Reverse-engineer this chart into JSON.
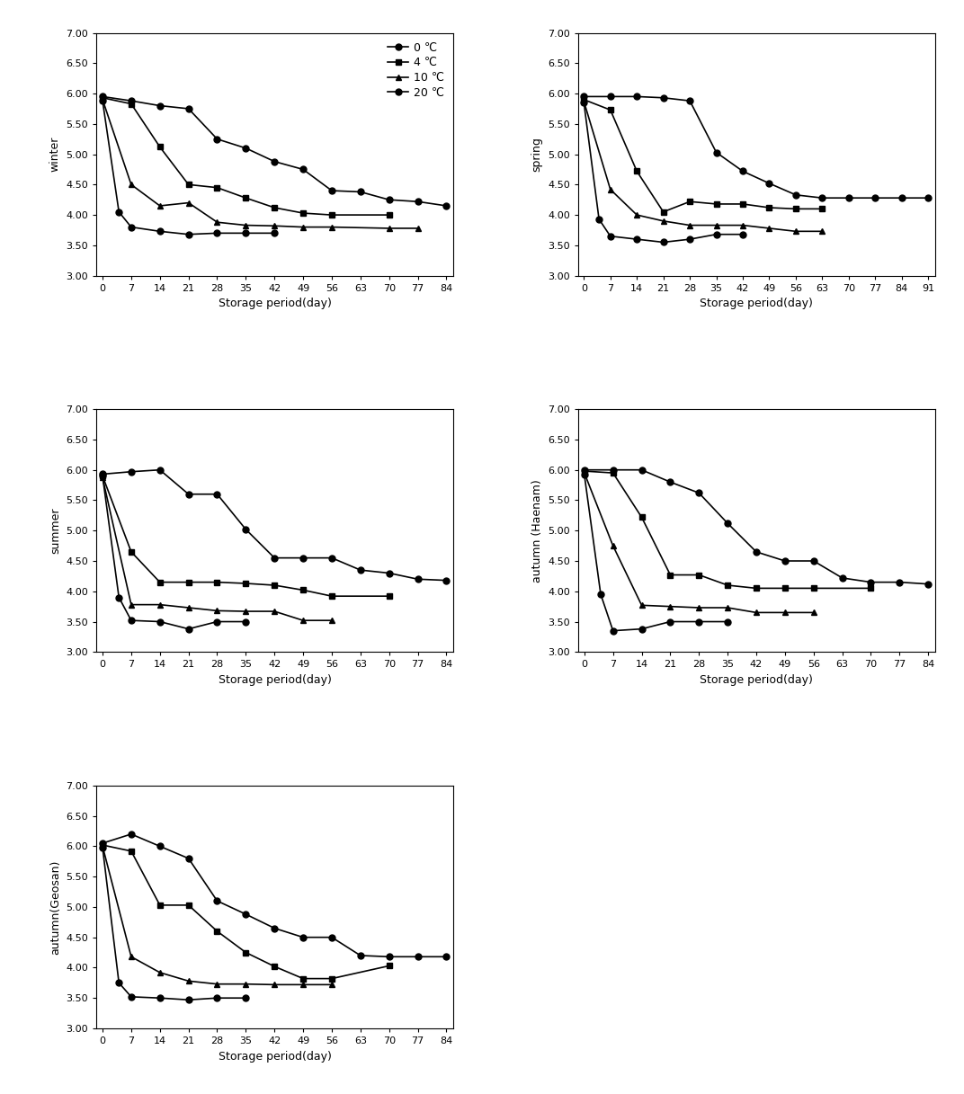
{
  "panels": [
    {
      "label": "winter",
      "x_ticks": [
        0,
        7,
        14,
        21,
        28,
        35,
        42,
        49,
        56,
        63,
        70,
        77,
        84
      ],
      "x_max": 84,
      "series": [
        {
          "temp": "0 ℃",
          "marker": "o",
          "x": [
            0,
            7,
            14,
            21,
            28,
            35,
            42,
            49,
            56,
            63,
            70,
            77,
            84
          ],
          "y": [
            5.95,
            5.88,
            5.8,
            5.75,
            5.25,
            5.1,
            4.88,
            4.75,
            4.4,
            4.38,
            4.25,
            4.22,
            4.15
          ]
        },
        {
          "temp": "4 ℃",
          "marker": "s",
          "x": [
            0,
            7,
            14,
            21,
            28,
            35,
            42,
            49,
            56,
            70
          ],
          "y": [
            5.93,
            5.83,
            5.12,
            4.5,
            4.45,
            4.28,
            4.12,
            4.03,
            4.0,
            4.0
          ]
        },
        {
          "temp": "10 ℃",
          "marker": "^",
          "x": [
            0,
            7,
            14,
            21,
            28,
            35,
            42,
            49,
            56,
            70,
            77
          ],
          "y": [
            5.9,
            4.5,
            4.15,
            4.2,
            3.88,
            3.83,
            3.82,
            3.8,
            3.8,
            3.78,
            3.78
          ]
        },
        {
          "temp": "20 ℃",
          "marker": "o",
          "x": [
            0,
            4,
            7,
            14,
            21,
            28,
            35,
            42
          ],
          "y": [
            5.88,
            4.05,
            3.8,
            3.73,
            3.68,
            3.7,
            3.7,
            3.7
          ]
        }
      ],
      "show_legend": true
    },
    {
      "label": "spring",
      "x_ticks": [
        0,
        7,
        14,
        21,
        28,
        35,
        42,
        49,
        56,
        63,
        70,
        77,
        84,
        91
      ],
      "x_max": 91,
      "series": [
        {
          "temp": "0 ℃",
          "marker": "o",
          "x": [
            0,
            7,
            14,
            21,
            28,
            35,
            42,
            49,
            56,
            63,
            70,
            77,
            84,
            91
          ],
          "y": [
            5.95,
            5.95,
            5.95,
            5.93,
            5.88,
            5.03,
            4.72,
            4.52,
            4.33,
            4.28,
            4.28,
            4.28,
            4.28,
            4.28
          ]
        },
        {
          "temp": "4 ℃",
          "marker": "s",
          "x": [
            0,
            7,
            14,
            21,
            28,
            35,
            42,
            49,
            56,
            63
          ],
          "y": [
            5.9,
            5.73,
            4.72,
            4.05,
            4.22,
            4.18,
            4.18,
            4.12,
            4.1,
            4.1
          ]
        },
        {
          "temp": "10 ℃",
          "marker": "^",
          "x": [
            0,
            7,
            14,
            21,
            28,
            35,
            42,
            49,
            56,
            63
          ],
          "y": [
            5.87,
            4.42,
            4.0,
            3.9,
            3.83,
            3.83,
            3.83,
            3.78,
            3.73,
            3.73
          ]
        },
        {
          "temp": "20 ℃",
          "marker": "o",
          "x": [
            0,
            4,
            7,
            14,
            21,
            28,
            35,
            42
          ],
          "y": [
            5.85,
            3.93,
            3.65,
            3.6,
            3.55,
            3.6,
            3.68,
            3.68
          ]
        }
      ],
      "show_legend": false
    },
    {
      "label": "summer",
      "x_ticks": [
        0,
        7,
        14,
        21,
        28,
        35,
        42,
        49,
        56,
        63,
        70,
        77,
        84
      ],
      "x_max": 84,
      "series": [
        {
          "temp": "0 ℃",
          "marker": "o",
          "x": [
            0,
            7,
            14,
            21,
            28,
            35,
            42,
            49,
            56,
            63,
            70,
            77,
            84
          ],
          "y": [
            5.93,
            5.97,
            6.0,
            5.6,
            5.6,
            5.02,
            4.55,
            4.55,
            4.55,
            4.35,
            4.3,
            4.2,
            4.18
          ]
        },
        {
          "temp": "4 ℃",
          "marker": "s",
          "x": [
            0,
            7,
            14,
            21,
            28,
            35,
            42,
            49,
            56,
            70
          ],
          "y": [
            5.9,
            4.65,
            4.15,
            4.15,
            4.15,
            4.13,
            4.1,
            4.02,
            3.92,
            3.92
          ]
        },
        {
          "temp": "10 ℃",
          "marker": "^",
          "x": [
            0,
            7,
            14,
            21,
            28,
            35,
            42,
            49,
            56
          ],
          "y": [
            5.87,
            3.78,
            3.78,
            3.73,
            3.68,
            3.67,
            3.67,
            3.52,
            3.52
          ]
        },
        {
          "temp": "20 ℃",
          "marker": "o",
          "x": [
            0,
            4,
            7,
            14,
            21,
            28,
            35
          ],
          "y": [
            5.9,
            3.9,
            3.52,
            3.5,
            3.38,
            3.5,
            3.5
          ]
        }
      ],
      "show_legend": false
    },
    {
      "label": "autumn (Haenam)",
      "x_ticks": [
        0,
        7,
        14,
        21,
        28,
        35,
        42,
        49,
        56,
        63,
        70,
        77,
        84
      ],
      "x_max": 84,
      "series": [
        {
          "temp": "0 ℃",
          "marker": "o",
          "x": [
            0,
            7,
            14,
            21,
            28,
            35,
            42,
            49,
            56,
            63,
            70,
            77,
            84
          ],
          "y": [
            6.0,
            6.0,
            6.0,
            5.8,
            5.62,
            5.12,
            4.65,
            4.5,
            4.5,
            4.22,
            4.15,
            4.15,
            4.12
          ]
        },
        {
          "temp": "4 ℃",
          "marker": "s",
          "x": [
            0,
            7,
            14,
            21,
            28,
            35,
            42,
            49,
            56,
            70
          ],
          "y": [
            5.98,
            5.95,
            5.22,
            4.27,
            4.27,
            4.1,
            4.05,
            4.05,
            4.05,
            4.05
          ]
        },
        {
          "temp": "10 ℃",
          "marker": "^",
          "x": [
            0,
            7,
            14,
            21,
            28,
            35,
            42,
            49,
            56
          ],
          "y": [
            5.95,
            4.75,
            3.77,
            3.75,
            3.73,
            3.73,
            3.65,
            3.65,
            3.65
          ]
        },
        {
          "temp": "20 ℃",
          "marker": "o",
          "x": [
            0,
            4,
            7,
            14,
            21,
            28,
            35
          ],
          "y": [
            5.92,
            3.95,
            3.35,
            3.38,
            3.5,
            3.5,
            3.5
          ]
        }
      ],
      "show_legend": false
    },
    {
      "label": "autumn(Geosan)",
      "x_ticks": [
        0,
        7,
        14,
        21,
        28,
        35,
        42,
        49,
        56,
        63,
        70,
        77,
        84
      ],
      "x_max": 84,
      "series": [
        {
          "temp": "0 ℃",
          "marker": "o",
          "x": [
            0,
            7,
            14,
            21,
            28,
            35,
            42,
            49,
            56,
            63,
            70,
            77,
            84
          ],
          "y": [
            6.05,
            6.2,
            6.0,
            5.8,
            5.1,
            4.88,
            4.65,
            4.5,
            4.5,
            4.2,
            4.18,
            4.18,
            4.18
          ]
        },
        {
          "temp": "4 ℃",
          "marker": "s",
          "x": [
            0,
            7,
            14,
            21,
            28,
            35,
            42,
            49,
            56,
            70
          ],
          "y": [
            6.02,
            5.92,
            5.03,
            5.03,
            4.6,
            4.25,
            4.02,
            3.82,
            3.82,
            4.03
          ]
        },
        {
          "temp": "10 ℃",
          "marker": "^",
          "x": [
            0,
            7,
            14,
            21,
            28,
            35,
            42,
            49,
            56
          ],
          "y": [
            6.0,
            4.18,
            3.92,
            3.78,
            3.73,
            3.73,
            3.72,
            3.72,
            3.72
          ]
        },
        {
          "temp": "20 ℃",
          "marker": "o",
          "x": [
            0,
            4,
            7,
            14,
            21,
            28,
            35
          ],
          "y": [
            5.98,
            3.75,
            3.52,
            3.5,
            3.47,
            3.5,
            3.5
          ]
        }
      ],
      "show_legend": false
    }
  ],
  "ylim": [
    3.0,
    7.0
  ],
  "yticks": [
    3.0,
    3.5,
    4.0,
    4.5,
    5.0,
    5.5,
    6.0,
    6.5,
    7.0
  ],
  "xlabel": "Storage period(day)",
  "line_color": "black",
  "marker_size": 5,
  "legend_temps": [
    "0 ℃",
    "4 ℃",
    "10 ℃",
    "20 ℃"
  ],
  "legend_markers": [
    "o",
    "s",
    "^",
    "o"
  ]
}
